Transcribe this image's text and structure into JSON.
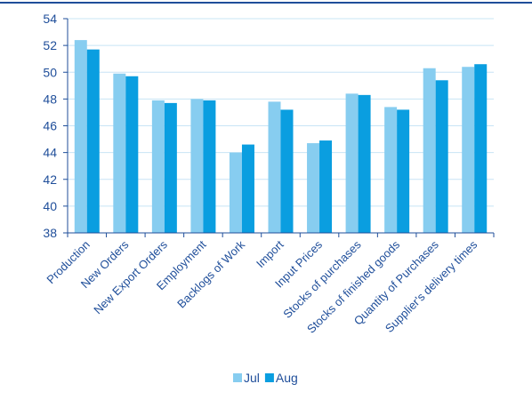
{
  "chart_data": {
    "type": "bar",
    "title": "",
    "xlabel": "",
    "ylabel": "",
    "categories": [
      "Production",
      "New Orders",
      "New Export Orders",
      "Employment",
      "Backlogs of Work",
      "Import",
      "Input Prices",
      "Stocks of purchases",
      "Stocks of finished goods",
      "Quantity of Purchases",
      "Supplier's delivery times"
    ],
    "series": [
      {
        "name": "Jul",
        "color": "#87cdf0",
        "values": [
          52.4,
          49.9,
          47.9,
          48.0,
          44.0,
          47.8,
          44.7,
          48.4,
          47.4,
          50.3,
          50.4
        ]
      },
      {
        "name": "Aug",
        "color": "#0a9ee0",
        "values": [
          51.7,
          49.7,
          47.7,
          47.9,
          44.6,
          47.2,
          44.9,
          48.3,
          47.2,
          49.4,
          50.6
        ]
      }
    ],
    "ylim": [
      38,
      54
    ],
    "ytick_step": 2,
    "yticks": [
      "38",
      "40",
      "42",
      "44",
      "46",
      "48",
      "50",
      "52",
      "54"
    ],
    "grid": true,
    "legend_position": "bottom-center",
    "colors": {
      "axis": "#1f4e9a",
      "grid": "#c8e4f5",
      "text": "#1f4e9a"
    }
  }
}
